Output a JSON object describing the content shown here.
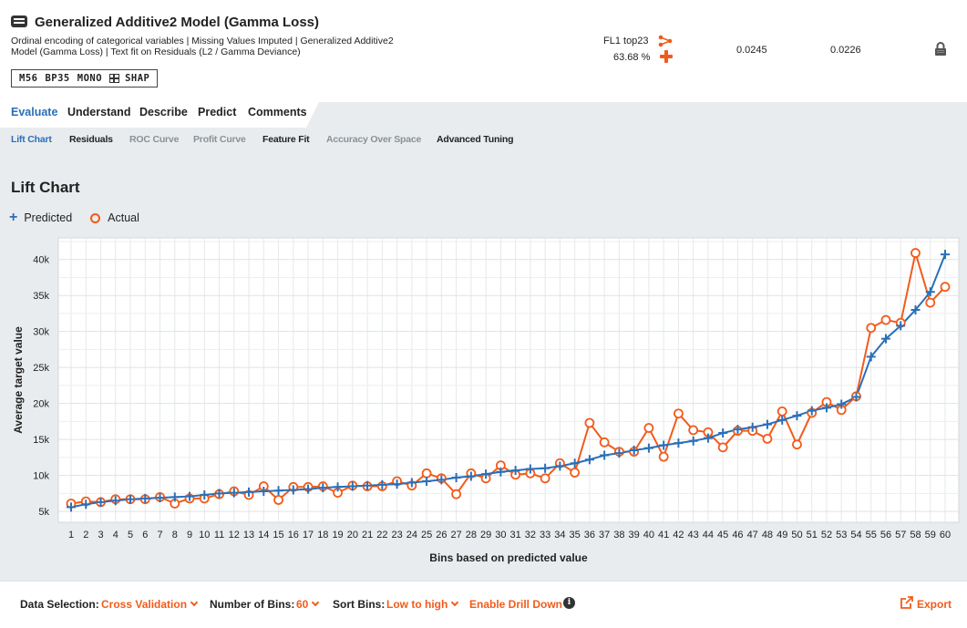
{
  "header": {
    "title": "Generalized Additive2 Model (Gamma Loss)",
    "description": "Ordinal encoding of categorical variables | Missing Values Imputed | Generalized Additive2 Model (Gamma Loss) | Text fit on Residuals (L2 / Gamma Deviance)",
    "badges": [
      "M56",
      "BP35",
      "MONO",
      "SHAP"
    ],
    "fl_tag": "FL1 top23",
    "fl_pct": "63.68 %",
    "metric_1": "0.0245",
    "metric_2": "0.0226",
    "icons": [
      "model-icon",
      "share-icon",
      "plus-icon",
      "lock-icon"
    ]
  },
  "tabs": [
    "Evaluate",
    "Understand",
    "Describe",
    "Predict",
    "Comments"
  ],
  "subtabs": [
    "Lift Chart",
    "Residuals",
    "ROC Curve",
    "Profit Curve",
    "Feature Fit",
    "Accuracy Over Space",
    "Advanced Tuning"
  ],
  "section_title": "Lift Chart",
  "legend": {
    "predicted": "Predicted",
    "actual": "Actual"
  },
  "colors": {
    "predicted": "#2a6fb8",
    "actual": "#f25b1a",
    "active_tab": "#2a6fb8"
  },
  "chart_data": {
    "type": "line",
    "xlabel": "Bins based on predicted value",
    "ylabel": "Average target value",
    "ylim": [
      3500,
      43000
    ],
    "yticks": [
      5000,
      10000,
      15000,
      20000,
      25000,
      30000,
      35000,
      40000
    ],
    "ytick_labels": [
      "5k",
      "10k",
      "15k",
      "20k",
      "25k",
      "30k",
      "35k",
      "40k"
    ],
    "grid": true,
    "legend_position": "top-left",
    "x": [
      1,
      2,
      3,
      4,
      5,
      6,
      7,
      8,
      9,
      10,
      11,
      12,
      13,
      14,
      15,
      16,
      17,
      18,
      19,
      20,
      21,
      22,
      23,
      24,
      25,
      26,
      27,
      28,
      29,
      30,
      31,
      32,
      33,
      34,
      35,
      36,
      37,
      38,
      39,
      40,
      41,
      42,
      43,
      44,
      45,
      46,
      47,
      48,
      49,
      50,
      51,
      52,
      53,
      54,
      55,
      56,
      57,
      58,
      59,
      60
    ],
    "series": [
      {
        "name": "Predicted",
        "values": [
          5600,
          6000,
          6300,
          6500,
          6700,
          6800,
          6900,
          7000,
          7100,
          7300,
          7500,
          7600,
          7700,
          7800,
          7900,
          8000,
          8100,
          8300,
          8400,
          8500,
          8600,
          8700,
          8800,
          9000,
          9200,
          9400,
          9700,
          9900,
          10200,
          10500,
          10700,
          10900,
          11000,
          11300,
          11700,
          12200,
          12800,
          13100,
          13500,
          13800,
          14200,
          14500,
          14800,
          15200,
          15900,
          16400,
          16700,
          17100,
          17700,
          18300,
          19000,
          19400,
          19900,
          20900,
          26500,
          29000,
          30800,
          33000,
          35500,
          40700
        ]
      },
      {
        "name": "Actual",
        "values": [
          6100,
          6400,
          6300,
          6700,
          6700,
          6700,
          7000,
          6100,
          6800,
          6800,
          7400,
          7800,
          7300,
          8500,
          6600,
          8400,
          8400,
          8500,
          7600,
          8600,
          8500,
          8500,
          9200,
          8600,
          10300,
          9600,
          7400,
          10300,
          9600,
          11400,
          10100,
          10300,
          9600,
          11700,
          10400,
          17300,
          14600,
          13300,
          13300,
          16600,
          12600,
          18600,
          16300,
          16000,
          13900,
          16200,
          16200,
          15100,
          18900,
          14300,
          18700,
          20200,
          19100,
          21000,
          30500,
          31600,
          31200,
          40900,
          34000,
          36200
        ]
      }
    ]
  },
  "bottom_bar": {
    "data_selection_label": "Data Selection:",
    "data_selection_value": "Cross Validation",
    "bins_label": "Number of Bins:",
    "bins_value": "60",
    "sort_label": "Sort Bins:",
    "sort_value": "Low to high",
    "drill_down": "Enable Drill Down",
    "export": "Export"
  }
}
